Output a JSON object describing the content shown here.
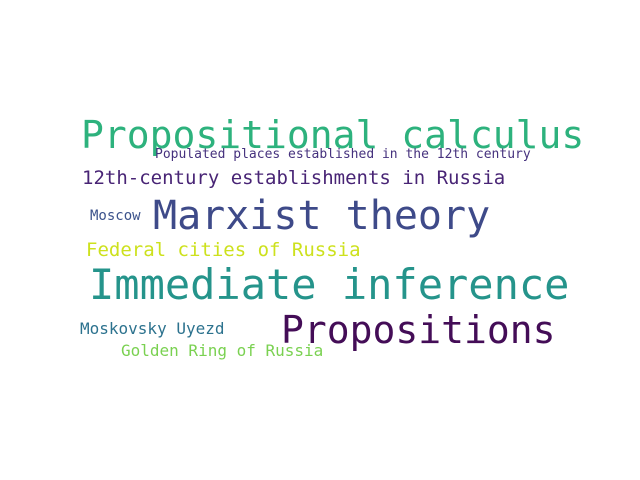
{
  "words": [
    {
      "text": "Propositional calculus",
      "color": "#2db27d"
    },
    {
      "text": "Populated places established in the 12th century",
      "color": "#46327e"
    },
    {
      "text": "12th-century establishments in Russia",
      "color": "#482475"
    },
    {
      "text": "Moscow",
      "color": "#3b528b"
    },
    {
      "text": "Marxist theory",
      "color": "#3e4a89"
    },
    {
      "text": "Federal cities of Russia",
      "color": "#cde11d"
    },
    {
      "text": "Immediate inference",
      "color": "#25948b"
    },
    {
      "text": "Moskovsky Uyezd",
      "color": "#2c728e"
    },
    {
      "text": "Propositions",
      "color": "#440d57"
    },
    {
      "text": "Golden Ring of Russia",
      "color": "#7ad151"
    }
  ]
}
